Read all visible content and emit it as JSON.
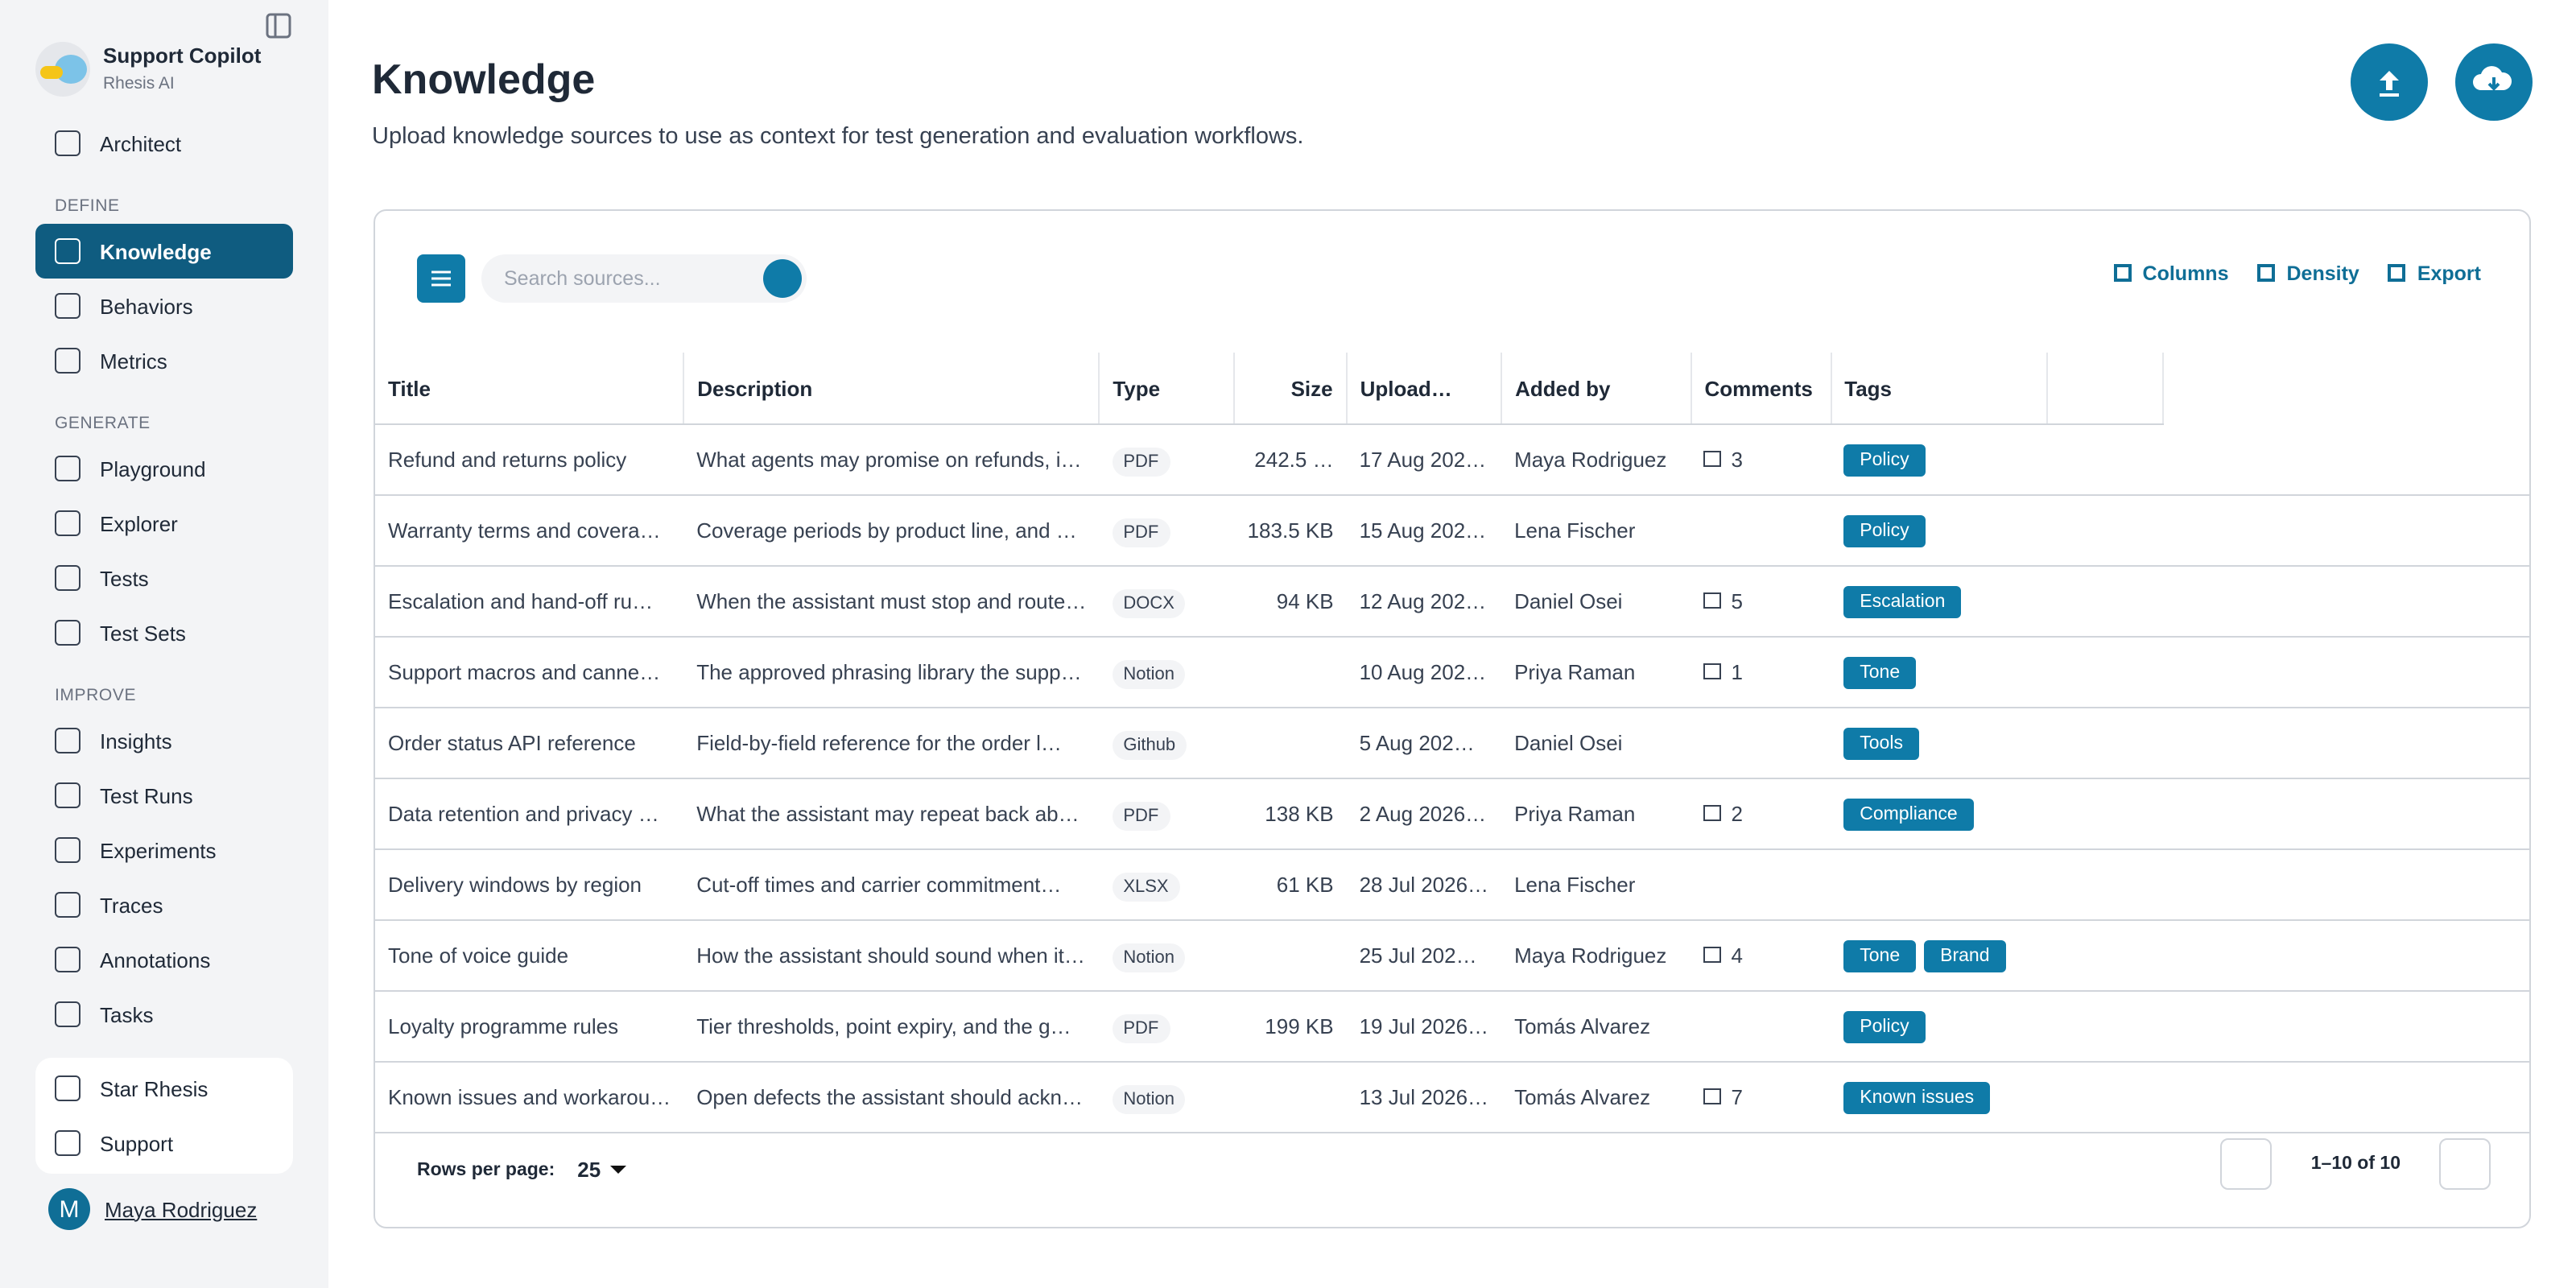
{
  "sidebar": {
    "app_name": "Support Copilot",
    "org": "Rhesis AI",
    "top_items": [
      "Architect"
    ],
    "sections": [
      {
        "label": "DEFINE",
        "items": [
          "Knowledge",
          "Behaviors",
          "Metrics"
        ]
      },
      {
        "label": "GENERATE",
        "items": [
          "Playground",
          "Explorer",
          "Tests",
          "Test Sets"
        ]
      },
      {
        "label": "IMPROVE",
        "items": [
          "Insights",
          "Test Runs",
          "Experiments",
          "Traces",
          "Annotations",
          "Tasks"
        ]
      }
    ],
    "footer_items": [
      "Star Rhesis",
      "Support"
    ],
    "user": {
      "initial": "M",
      "name": "Maya Rodriguez"
    }
  },
  "header": {
    "title": "Knowledge",
    "subtitle": "Upload knowledge sources to use as context for test generation and evaluation workflows."
  },
  "toolbar": {
    "search_placeholder": "Search sources...",
    "actions": [
      "Columns",
      "Density",
      "Export"
    ]
  },
  "table": {
    "columns": [
      "Title",
      "Description",
      "Type",
      "Size",
      "Upload…",
      "Added by",
      "Comments",
      "Tags"
    ],
    "rows": [
      [
        "Refund and returns policy",
        "What agents may promise on refunds, i…",
        "PDF",
        "242.5 …",
        "17 Aug 202…",
        "Maya Rodriguez",
        "3",
        [
          "Policy"
        ]
      ],
      [
        "Warranty terms and covera…",
        "Coverage periods by product line, and …",
        "PDF",
        "183.5 KB",
        "15 Aug 202…",
        "Lena Fischer",
        null,
        [
          "Policy"
        ]
      ],
      [
        "Escalation and hand-off ru…",
        "When the assistant must stop and route…",
        "DOCX",
        "94 KB",
        "12 Aug 202…",
        "Daniel Osei",
        "5",
        [
          "Escalation"
        ]
      ],
      [
        "Support macros and canne…",
        "The approved phrasing library the supp…",
        "Notion",
        null,
        "10 Aug 202…",
        "Priya Raman",
        "1",
        [
          "Tone"
        ]
      ],
      [
        "Order status API reference",
        "Field-by-field reference for the order l…",
        "Github",
        null,
        "5 Aug 202…",
        "Daniel Osei",
        null,
        [
          "Tools"
        ]
      ],
      [
        "Data retention and privacy …",
        "What the assistant may repeat back ab…",
        "PDF",
        "138 KB",
        "2 Aug 2026…",
        "Priya Raman",
        "2",
        [
          "Compliance"
        ]
      ],
      [
        "Delivery windows by region",
        "Cut-off times and carrier commitment…",
        "XLSX",
        "61 KB",
        "28 Jul 2026…",
        "Lena Fischer",
        null,
        []
      ],
      [
        "Tone of voice guide",
        "How the assistant should sound when it…",
        "Notion",
        null,
        "25 Jul 202…",
        "Maya Rodriguez",
        "4",
        [
          "Tone",
          "Brand"
        ]
      ],
      [
        "Loyalty programme rules",
        "Tier thresholds, point expiry, and the g…",
        "PDF",
        "199 KB",
        "19 Jul 2026…",
        "Tomás Alvarez",
        null,
        [
          "Policy"
        ]
      ],
      [
        "Known issues and workarou…",
        "Open defects the assistant should ackn…",
        "Notion",
        null,
        "13 Jul 2026…",
        "Tomás Alvarez",
        "7",
        [
          "Known issues"
        ]
      ]
    ]
  },
  "pagination": {
    "rows_per_page_label": "Rows per page:",
    "rows_per_page": "25",
    "range": "1–10 of 10"
  }
}
